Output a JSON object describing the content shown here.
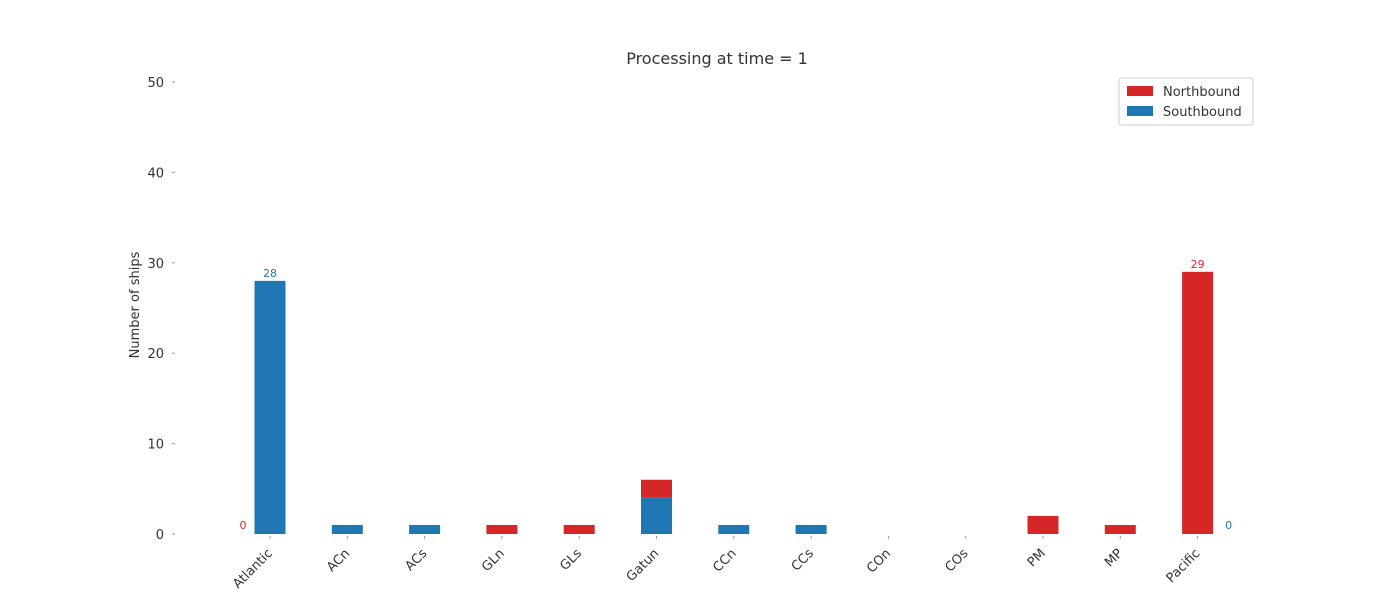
{
  "chart_data": {
    "type": "bar",
    "title": "Processing at time = 1",
    "xlabel": "",
    "ylabel": "Number of ships",
    "ylim": [
      0,
      50
    ],
    "yticks": [
      0,
      10,
      20,
      30,
      40,
      50
    ],
    "grid": false,
    "legend_position": "top-right",
    "categories": [
      "Atlantic",
      "ACn",
      "ACs",
      "GLn",
      "GLs",
      "Gatun",
      "CCn",
      "CCs",
      "COn",
      "COs",
      "PM",
      "MP",
      "Pacific"
    ],
    "series": [
      {
        "name": "Northbound",
        "color": "#d62728",
        "values": [
          0,
          0,
          0,
          1,
          1,
          2,
          0,
          0,
          0,
          0,
          2,
          1,
          29
        ]
      },
      {
        "name": "Southbound",
        "color": "#1f77b4",
        "values": [
          28,
          1,
          1,
          0,
          0,
          4,
          1,
          1,
          0,
          0,
          0,
          0,
          0
        ]
      }
    ],
    "data_labels": [
      {
        "text": "0",
        "category": "Atlantic",
        "series": "Northbound"
      },
      {
        "text": "28",
        "category": "Atlantic",
        "series": "Southbound"
      },
      {
        "text": "29",
        "category": "Pacific",
        "series": "Northbound"
      },
      {
        "text": "0",
        "category": "Pacific",
        "series": "Southbound"
      }
    ]
  }
}
